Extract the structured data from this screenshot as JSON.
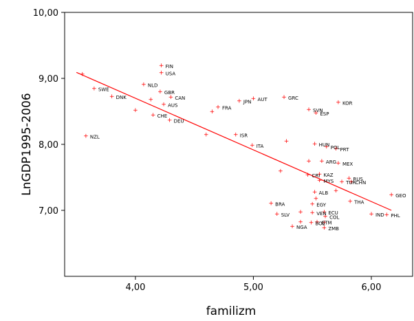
{
  "chart_data": {
    "type": "scatter",
    "xlabel": "familizm",
    "ylabel": "LnGDP1995-2006",
    "xlim": [
      3.4,
      6.35
    ],
    "ylim": [
      6.0,
      10.0
    ],
    "x_ticks": [
      {
        "v": 4.0,
        "label": "4,00"
      },
      {
        "v": 5.0,
        "label": "5,00"
      },
      {
        "v": 6.0,
        "label": "6,00"
      }
    ],
    "y_ticks": [
      {
        "v": 7.0,
        "label": "7,00"
      },
      {
        "v": 8.0,
        "label": "8,00"
      },
      {
        "v": 9.0,
        "label": "9,00"
      },
      {
        "v": 10.0,
        "label": "10,00"
      }
    ],
    "grid": false,
    "marker_color": "#ff0000",
    "fit_line": {
      "color": "#ff0000",
      "x": [
        3.5,
        6.17
      ],
      "y": [
        9.09,
        7.0
      ]
    },
    "points": [
      {
        "label": "",
        "x": 3.55,
        "y": 9.07
      },
      {
        "label": "SWE",
        "x": 3.65,
        "y": 8.85
      },
      {
        "label": "DNK",
        "x": 3.8,
        "y": 8.73
      },
      {
        "label": "NZL",
        "x": 3.58,
        "y": 8.13
      },
      {
        "label": "NLD",
        "x": 4.07,
        "y": 8.91
      },
      {
        "label": "",
        "x": 4.13,
        "y": 8.68
      },
      {
        "label": "",
        "x": 4.0,
        "y": 8.52
      },
      {
        "label": "CHE",
        "x": 4.15,
        "y": 8.45
      },
      {
        "label": "FIN",
        "x": 4.22,
        "y": 9.2
      },
      {
        "label": "USA",
        "x": 4.22,
        "y": 9.09
      },
      {
        "label": "GBR",
        "x": 4.21,
        "y": 8.8
      },
      {
        "label": "AUS",
        "x": 4.24,
        "y": 8.61
      },
      {
        "label": "CAN",
        "x": 4.3,
        "y": 8.72
      },
      {
        "label": "DEU",
        "x": 4.29,
        "y": 8.37
      },
      {
        "label": "",
        "x": 4.65,
        "y": 8.5
      },
      {
        "label": "FRA",
        "x": 4.7,
        "y": 8.57
      },
      {
        "label": "JPN",
        "x": 4.88,
        "y": 8.66
      },
      {
        "label": "",
        "x": 4.6,
        "y": 8.15
      },
      {
        "label": "ISR",
        "x": 4.85,
        "y": 8.15
      },
      {
        "label": "AUT",
        "x": 5.0,
        "y": 8.7
      },
      {
        "label": "ITA",
        "x": 4.99,
        "y": 7.99
      },
      {
        "label": "GRC",
        "x": 5.26,
        "y": 8.72
      },
      {
        "label": "SVN",
        "x": 5.47,
        "y": 8.53
      },
      {
        "label": "ESP",
        "x": 5.53,
        "y": 8.48
      },
      {
        "label": "KOR",
        "x": 5.72,
        "y": 8.64
      },
      {
        "label": "",
        "x": 5.28,
        "y": 8.05
      },
      {
        "label": "HUN",
        "x": 5.52,
        "y": 8.01
      },
      {
        "label": "POL",
        "x": 5.62,
        "y": 7.97
      },
      {
        "label": "PRT",
        "x": 5.7,
        "y": 7.94
      },
      {
        "label": "",
        "x": 5.47,
        "y": 7.75
      },
      {
        "label": "ARG",
        "x": 5.58,
        "y": 7.75
      },
      {
        "label": "MEX",
        "x": 5.72,
        "y": 7.72
      },
      {
        "label": "",
        "x": 5.23,
        "y": 7.6
      },
      {
        "label": "CRI",
        "x": 5.46,
        "y": 7.54
      },
      {
        "label": "KAZ",
        "x": 5.56,
        "y": 7.55
      },
      {
        "label": "MYS",
        "x": 5.56,
        "y": 7.46
      },
      {
        "label": "RUS",
        "x": 5.81,
        "y": 7.49
      },
      {
        "label": "TUR",
        "x": 5.75,
        "y": 7.44
      },
      {
        "label": "CHN",
        "x": 5.83,
        "y": 7.44
      },
      {
        "label": "ALB",
        "x": 5.52,
        "y": 7.28
      },
      {
        "label": "",
        "x": 5.7,
        "y": 7.3
      },
      {
        "label": "",
        "x": 5.53,
        "y": 7.18
      },
      {
        "label": "THA",
        "x": 5.82,
        "y": 7.14
      },
      {
        "label": "GEO",
        "x": 6.17,
        "y": 7.24
      },
      {
        "label": "EGY",
        "x": 5.5,
        "y": 7.1
      },
      {
        "label": "BRA",
        "x": 5.15,
        "y": 7.11
      },
      {
        "label": "",
        "x": 5.4,
        "y": 6.98
      },
      {
        "label": "VEN",
        "x": 5.5,
        "y": 6.97
      },
      {
        "label": "ECU",
        "x": 5.6,
        "y": 6.98
      },
      {
        "label": "SLV",
        "x": 5.2,
        "y": 6.95
      },
      {
        "label": "COL",
        "x": 5.61,
        "y": 6.91
      },
      {
        "label": "IND",
        "x": 6.0,
        "y": 6.95
      },
      {
        "label": "PHL",
        "x": 6.13,
        "y": 6.94
      },
      {
        "label": "",
        "x": 5.4,
        "y": 6.83
      },
      {
        "label": "BOL",
        "x": 5.49,
        "y": 6.82
      },
      {
        "label": "GTM",
        "x": 5.54,
        "y": 6.83
      },
      {
        "label": "",
        "x": 5.6,
        "y": 6.82
      },
      {
        "label": "NGA",
        "x": 5.33,
        "y": 6.76
      },
      {
        "label": "ZMB",
        "x": 5.6,
        "y": 6.74
      }
    ]
  }
}
